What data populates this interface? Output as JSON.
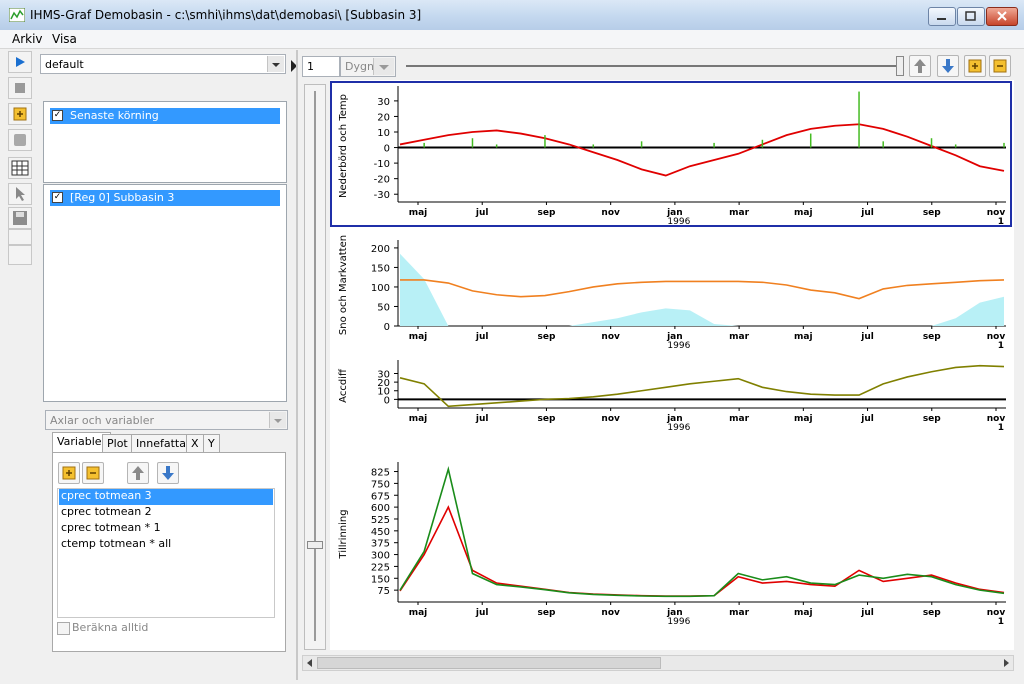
{
  "window": {
    "title": "IHMS-Graf Demobasin - c:\\smhi\\ihms\\dat\\demobasi\\ [Subbasin 3]"
  },
  "menu": {
    "items": [
      "Arkiv",
      "Visa"
    ]
  },
  "left": {
    "config_combo": "default",
    "run_list": [
      "Senaste körning"
    ],
    "subbasin_list": [
      "[Reg 0] Subbasin 3"
    ],
    "axes_combo": "Axlar och variabler",
    "tabs": [
      "Variabler",
      "Plot",
      "Innefatta",
      "X",
      "Y"
    ],
    "variables": [
      "cprec totmean 3",
      "cprec totmean 2",
      "cprec totmean * 1",
      "ctemp totmean * all"
    ],
    "always_calc": "Beräkna alltid"
  },
  "time_bar": {
    "step": "1",
    "unit": "Dygn"
  },
  "colors": {
    "precip": "#44bb22",
    "temp": "#e00000",
    "snow": "#b8f0f6",
    "soil": "#f08020",
    "accdiff": "#808000",
    "sim": "#e00000",
    "obs": "#1a8c1a",
    "frame": "#1f2fa8"
  },
  "x_axis": {
    "month_labels": [
      "maj",
      "jul",
      "sep",
      "nov",
      "jan",
      "mar",
      "maj",
      "jul",
      "sep",
      "nov"
    ],
    "year_label": "1996",
    "end_label": "1"
  },
  "chart_data": [
    {
      "type": "line",
      "ylabel": "Nederbörd och Temp",
      "yticks": [
        30,
        20,
        10,
        0,
        -10,
        -20,
        -30
      ],
      "ylim": [
        -35,
        37
      ],
      "series": [
        {
          "key": "temp",
          "values": [
            2,
            5,
            8,
            10,
            11,
            9,
            6,
            2,
            -3,
            -8,
            -14,
            -18,
            -12,
            -8,
            -4,
            2,
            8,
            12,
            14,
            15,
            12,
            7,
            1,
            -5,
            -12,
            -15
          ]
        },
        {
          "key": "precip",
          "values": [
            0,
            3,
            0,
            6,
            2,
            0,
            8,
            0,
            2,
            0,
            4,
            0,
            0,
            3,
            0,
            5,
            0,
            9,
            0,
            36,
            4,
            0,
            6,
            2,
            0,
            3
          ]
        }
      ]
    },
    {
      "type": "area",
      "ylabel": "Sno och Markvatten",
      "yticks": [
        200,
        150,
        100,
        50,
        0
      ],
      "ylim": [
        0,
        210
      ],
      "series": [
        {
          "key": "snow",
          "values": [
            185,
            120,
            0,
            0,
            0,
            0,
            0,
            0,
            10,
            20,
            35,
            45,
            40,
            5,
            0,
            0,
            0,
            0,
            0,
            0,
            0,
            0,
            0,
            20,
            60,
            75
          ]
        },
        {
          "key": "soil",
          "values": [
            118,
            118,
            110,
            90,
            80,
            75,
            78,
            88,
            100,
            108,
            112,
            114,
            114,
            114,
            114,
            112,
            105,
            92,
            85,
            70,
            95,
            104,
            108,
            112,
            116,
            118
          ]
        }
      ]
    },
    {
      "type": "line",
      "ylabel": "Accdiff",
      "yticks": [
        30,
        20,
        10,
        0
      ],
      "ylim": [
        -10,
        41
      ],
      "series": [
        {
          "key": "accdiff",
          "values": [
            25,
            18,
            -8,
            -6,
            -4,
            -2,
            0,
            1,
            3,
            6,
            10,
            14,
            18,
            21,
            24,
            14,
            9,
            6,
            5,
            5,
            18,
            26,
            32,
            37,
            39,
            38
          ]
        }
      ]
    },
    {
      "type": "line",
      "ylabel": "Tillrinning",
      "yticks": [
        825,
        750,
        675,
        600,
        525,
        450,
        375,
        300,
        225,
        150,
        75
      ],
      "ylim": [
        0,
        860
      ],
      "series": [
        {
          "key": "sim",
          "values": [
            70,
            300,
            600,
            200,
            120,
            100,
            80,
            60,
            50,
            45,
            40,
            38,
            38,
            40,
            160,
            120,
            130,
            110,
            100,
            200,
            130,
            150,
            170,
            120,
            80,
            60
          ]
        },
        {
          "key": "obs",
          "values": [
            75,
            320,
            840,
            180,
            110,
            95,
            78,
            58,
            48,
            42,
            38,
            36,
            36,
            40,
            180,
            140,
            160,
            120,
            110,
            170,
            150,
            175,
            160,
            110,
            75,
            55
          ]
        }
      ]
    }
  ]
}
